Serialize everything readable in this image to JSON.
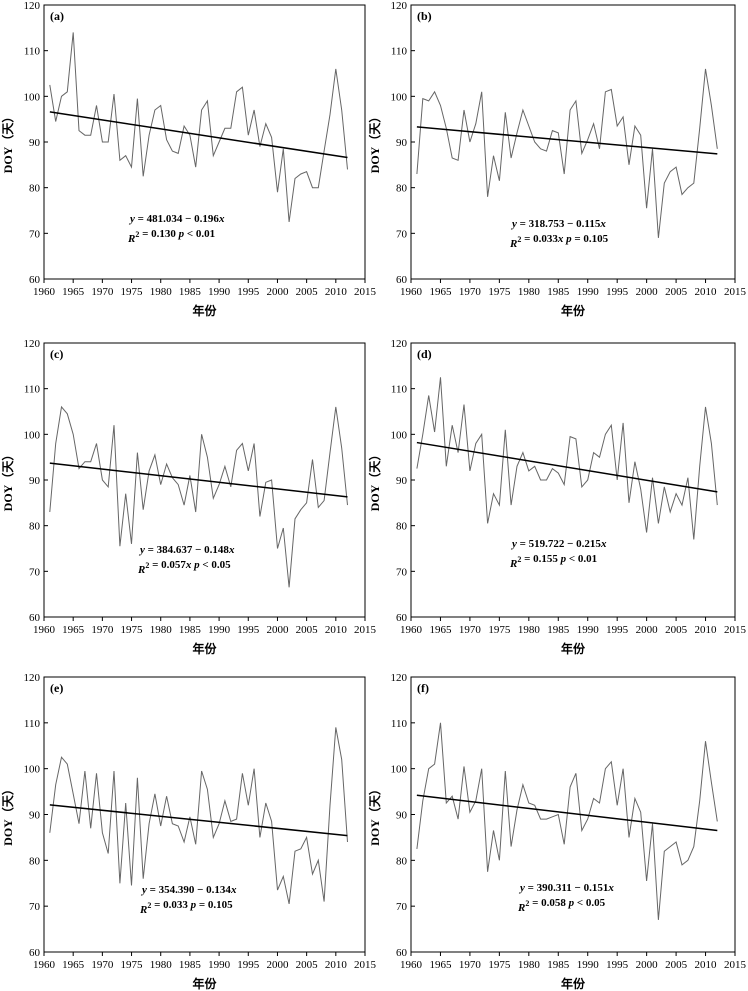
{
  "figure": {
    "xlabel": "年份",
    "ylabel": "DOY（天）"
  },
  "chart_data": [
    {
      "type": "line",
      "panel": "(a)",
      "xlabel": "年份",
      "ylabel": "DOY（天）",
      "xlim": [
        1960,
        2015
      ],
      "ylim": [
        60,
        120
      ],
      "xticks": [
        1960,
        1965,
        1970,
        1975,
        1980,
        1985,
        1990,
        1995,
        2000,
        2005,
        2010,
        2015
      ],
      "yticks": [
        60,
        70,
        80,
        90,
        100,
        110,
        120
      ],
      "equation": "y = 481.034 − 0.196x",
      "stats": "R² = 0.130   p < 0.01",
      "trend": {
        "intercept": 481.034,
        "slope": -0.196,
        "x": [
          1961,
          2012
        ],
        "y": [
          96.6,
          86.6
        ]
      },
      "series": [
        {
          "name": "DOY",
          "x": [
            1961,
            1962,
            1963,
            1964,
            1965,
            1966,
            1967,
            1968,
            1969,
            1970,
            1971,
            1972,
            1973,
            1974,
            1975,
            1976,
            1977,
            1978,
            1979,
            1980,
            1981,
            1982,
            1983,
            1984,
            1985,
            1986,
            1987,
            1988,
            1989,
            1990,
            1991,
            1992,
            1993,
            1994,
            1995,
            1996,
            1997,
            1998,
            1999,
            2000,
            2001,
            2002,
            2003,
            2004,
            2005,
            2006,
            2007,
            2008,
            2009,
            2010,
            2011,
            2012
          ],
          "values": [
            102.5,
            94.5,
            100,
            101,
            114,
            92.5,
            91.5,
            91.5,
            98,
            90,
            90,
            100.5,
            86,
            87,
            84.5,
            99.5,
            82.5,
            91.5,
            97,
            98,
            90.5,
            88,
            87.5,
            93.5,
            91.5,
            84.5,
            97,
            99,
            87,
            90,
            93,
            93,
            101,
            102,
            91.5,
            97,
            89,
            94,
            91,
            79,
            88.5,
            72.5,
            82,
            83,
            83.5,
            80,
            80,
            88,
            96,
            106,
            97,
            84
          ]
        }
      ]
    },
    {
      "type": "line",
      "panel": "(b)",
      "xlabel": "年份",
      "ylabel": "DOY（天）",
      "xlim": [
        1960,
        2015
      ],
      "ylim": [
        60,
        120
      ],
      "xticks": [
        1960,
        1965,
        1970,
        1975,
        1980,
        1985,
        1990,
        1995,
        2000,
        2005,
        2010,
        2015
      ],
      "yticks": [
        60,
        70,
        80,
        90,
        100,
        110,
        120
      ],
      "equation": "y = 318.753 − 0.115x",
      "stats": "R² = 0.033x   p = 0.105",
      "trend": {
        "intercept": 318.753,
        "slope": -0.115,
        "x": [
          1961,
          2012
        ],
        "y": [
          93.3,
          87.4
        ]
      },
      "series": [
        {
          "name": "DOY",
          "x": [
            1961,
            1962,
            1963,
            1964,
            1965,
            1966,
            1967,
            1968,
            1969,
            1970,
            1971,
            1972,
            1973,
            1974,
            1975,
            1976,
            1977,
            1978,
            1979,
            1980,
            1981,
            1982,
            1983,
            1984,
            1985,
            1986,
            1987,
            1988,
            1989,
            1990,
            1991,
            1992,
            1993,
            1994,
            1995,
            1996,
            1997,
            1998,
            1999,
            2000,
            2001,
            2002,
            2003,
            2004,
            2005,
            2006,
            2007,
            2008,
            2009,
            2010,
            2011,
            2012
          ],
          "values": [
            83,
            99.5,
            99,
            101,
            98,
            93,
            86.5,
            86,
            97,
            90,
            94,
            101,
            78,
            87,
            81.5,
            96.5,
            86.5,
            92,
            97,
            93.5,
            90,
            88.5,
            88,
            92.5,
            92,
            83,
            97,
            99,
            87.5,
            90.5,
            94,
            88.5,
            101,
            101.5,
            93.5,
            95.5,
            85,
            93.5,
            91.5,
            75.5,
            88.5,
            69,
            81,
            83.5,
            84.5,
            78.5,
            80,
            81,
            93,
            106,
            98,
            88.5
          ]
        }
      ]
    },
    {
      "type": "line",
      "panel": "(c)",
      "xlabel": "年份",
      "ylabel": "DOY（天）",
      "xlim": [
        1960,
        2015
      ],
      "ylim": [
        60,
        120
      ],
      "xticks": [
        1960,
        1965,
        1970,
        1975,
        1980,
        1985,
        1990,
        1995,
        2000,
        2005,
        2010,
        2015
      ],
      "yticks": [
        60,
        70,
        80,
        90,
        100,
        110,
        120
      ],
      "equation": "y = 384.637 − 0.148x",
      "stats": "R² = 0.057x   p < 0.05",
      "trend": {
        "intercept": 384.637,
        "slope": -0.148,
        "x": [
          1961,
          2012
        ],
        "y": [
          93.7,
          86.3
        ]
      },
      "series": [
        {
          "name": "DOY",
          "x": [
            1961,
            1962,
            1963,
            1964,
            1965,
            1966,
            1967,
            1968,
            1969,
            1970,
            1971,
            1972,
            1973,
            1974,
            1975,
            1976,
            1977,
            1978,
            1979,
            1980,
            1981,
            1982,
            1983,
            1984,
            1985,
            1986,
            1987,
            1988,
            1989,
            1990,
            1991,
            1992,
            1993,
            1994,
            1995,
            1996,
            1997,
            1998,
            1999,
            2000,
            2001,
            2002,
            2003,
            2004,
            2005,
            2006,
            2007,
            2008,
            2009,
            2010,
            2011,
            2012
          ],
          "values": [
            83,
            98,
            106,
            104.5,
            100,
            92.5,
            94,
            94,
            98,
            90,
            88.5,
            102,
            75.5,
            87,
            76,
            96,
            83.5,
            92,
            95.5,
            89,
            93.5,
            90.5,
            89,
            84.5,
            91,
            83,
            100,
            95,
            86,
            89,
            93,
            88.5,
            96.5,
            98,
            92,
            98,
            82,
            89.5,
            90,
            75,
            79.5,
            66.5,
            81.5,
            83.5,
            85,
            94.5,
            84,
            85.5,
            96,
            106,
            97,
            84.5
          ]
        }
      ]
    },
    {
      "type": "line",
      "panel": "(d)",
      "xlabel": "年份",
      "ylabel": "DOY（天）",
      "xlim": [
        1960,
        2015
      ],
      "ylim": [
        60,
        120
      ],
      "xticks": [
        1960,
        1965,
        1970,
        1975,
        1980,
        1985,
        1990,
        1995,
        2000,
        2005,
        2010,
        2015
      ],
      "yticks": [
        60,
        70,
        80,
        90,
        100,
        110,
        120
      ],
      "equation": "y = 519.722 − 0.215x",
      "stats": "R² = 0.155   p < 0.01",
      "trend": {
        "intercept": 519.722,
        "slope": -0.215,
        "x": [
          1961,
          2012
        ],
        "y": [
          98.2,
          87.4
        ]
      },
      "series": [
        {
          "name": "DOY",
          "x": [
            1961,
            1962,
            1963,
            1964,
            1965,
            1966,
            1967,
            1968,
            1969,
            1970,
            1971,
            1972,
            1973,
            1974,
            1975,
            1976,
            1977,
            1978,
            1979,
            1980,
            1981,
            1982,
            1983,
            1984,
            1985,
            1986,
            1987,
            1988,
            1989,
            1990,
            1991,
            1992,
            1993,
            1994,
            1995,
            1996,
            1997,
            1998,
            1999,
            2000,
            2001,
            2002,
            2003,
            2004,
            2005,
            2006,
            2007,
            2008,
            2009,
            2010,
            2011,
            2012
          ],
          "values": [
            92.5,
            100,
            108.5,
            100.5,
            112.5,
            93,
            102,
            96,
            106.5,
            92,
            98,
            100,
            80.5,
            87,
            84.5,
            101,
            84.5,
            93,
            96,
            92,
            93,
            90,
            90,
            92.5,
            91.5,
            89,
            99.5,
            99,
            88.5,
            90,
            96,
            95,
            100,
            102,
            90,
            102.5,
            85,
            94,
            88,
            78.5,
            90.5,
            80.5,
            88.5,
            83,
            87,
            84.5,
            90.5,
            77,
            93,
            106,
            98,
            84.5
          ]
        }
      ]
    },
    {
      "type": "line",
      "panel": "(e)",
      "xlabel": "年份",
      "ylabel": "DOY（天）",
      "xlim": [
        1960,
        2015
      ],
      "ylim": [
        60,
        120
      ],
      "xticks": [
        1960,
        1965,
        1970,
        1975,
        1980,
        1985,
        1990,
        1995,
        2000,
        2005,
        2010,
        2015
      ],
      "yticks": [
        60,
        70,
        80,
        90,
        100,
        110,
        120
      ],
      "equation": "y = 354.390 − 0.134x",
      "stats": "R² = 0.033   p = 0.105",
      "trend": {
        "intercept": 354.39,
        "slope": -0.134,
        "x": [
          1961,
          2012
        ],
        "y": [
          92.1,
          85.4
        ]
      },
      "series": [
        {
          "name": "DOY",
          "x": [
            1961,
            1962,
            1963,
            1964,
            1965,
            1966,
            1967,
            1968,
            1969,
            1970,
            1971,
            1972,
            1973,
            1974,
            1975,
            1976,
            1977,
            1978,
            1979,
            1980,
            1981,
            1982,
            1983,
            1984,
            1985,
            1986,
            1987,
            1988,
            1989,
            1990,
            1991,
            1992,
            1993,
            1994,
            1995,
            1996,
            1997,
            1998,
            1999,
            2000,
            2001,
            2002,
            2003,
            2004,
            2005,
            2006,
            2007,
            2008,
            2009,
            2010,
            2011,
            2012
          ],
          "values": [
            86,
            96.5,
            102.5,
            101,
            94.5,
            88,
            99.5,
            87,
            99,
            86,
            81.5,
            99.5,
            75,
            92.5,
            74.5,
            98,
            76,
            88,
            94.5,
            87.5,
            94,
            88,
            87.5,
            84,
            89.5,
            83.5,
            99.5,
            95.5,
            85,
            88,
            93,
            88.5,
            89,
            99,
            92,
            100,
            85,
            92.5,
            88.5,
            73.5,
            76.5,
            70.5,
            82,
            82.5,
            85,
            77,
            80,
            71,
            92,
            109,
            102,
            84
          ]
        }
      ]
    },
    {
      "type": "line",
      "panel": "(f)",
      "xlabel": "年份",
      "ylabel": "DOY（天）",
      "xlim": [
        1960,
        2015
      ],
      "ylim": [
        60,
        120
      ],
      "xticks": [
        1960,
        1965,
        1970,
        1975,
        1980,
        1985,
        1990,
        1995,
        2000,
        2005,
        2010,
        2015
      ],
      "yticks": [
        60,
        70,
        80,
        90,
        100,
        110,
        120
      ],
      "equation": "y = 390.311 − 0.151x",
      "stats": "R² = 0.058   p < 0.05",
      "trend": {
        "intercept": 390.311,
        "slope": -0.151,
        "x": [
          1961,
          2012
        ],
        "y": [
          94.2,
          86.5
        ]
      },
      "series": [
        {
          "name": "DOY",
          "x": [
            1961,
            1962,
            1963,
            1964,
            1965,
            1966,
            1967,
            1968,
            1969,
            1970,
            1971,
            1972,
            1973,
            1974,
            1975,
            1976,
            1977,
            1978,
            1979,
            1980,
            1981,
            1982,
            1983,
            1984,
            1985,
            1986,
            1987,
            1988,
            1989,
            1990,
            1991,
            1992,
            1993,
            1994,
            1995,
            1996,
            1997,
            1998,
            1999,
            2000,
            2001,
            2002,
            2003,
            2004,
            2005,
            2006,
            2007,
            2008,
            2009,
            2010,
            2011,
            2012
          ],
          "values": [
            82.5,
            93,
            100,
            101,
            110,
            92.5,
            94,
            89,
            100.5,
            90.5,
            93,
            100,
            77.5,
            86.5,
            80,
            99.5,
            83,
            91,
            96.5,
            92.5,
            92,
            89,
            89,
            89.5,
            90,
            83.5,
            96,
            99,
            86.5,
            89,
            93.5,
            92.5,
            100,
            101.5,
            92,
            100,
            85,
            93.5,
            90.5,
            75.5,
            88,
            67,
            82,
            83,
            84,
            79,
            80,
            83,
            93,
            106,
            97,
            88.5
          ]
        }
      ]
    }
  ]
}
